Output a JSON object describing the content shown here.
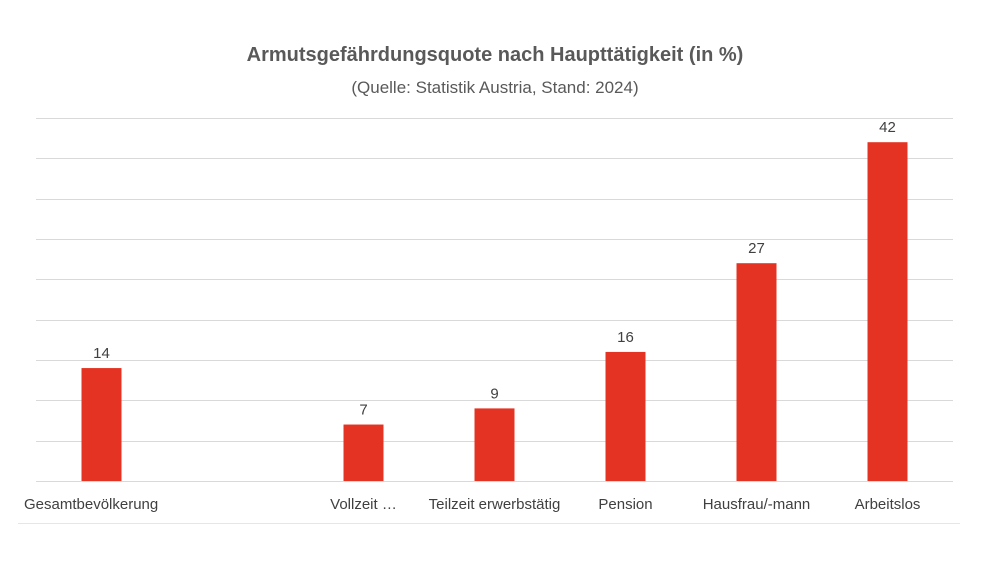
{
  "chart_data": {
    "type": "bar",
    "title": "Armutsgefährdungsquote nach Haupttätigkeit (in %)",
    "subtitle": "(Quelle: Statistik Austria, Stand: 2024)",
    "categories": [
      "Gesamtbevölkerung",
      "",
      "Vollzeit …",
      "Teilzeit erwerbstätig",
      "Pension",
      "Hausfrau/-mann",
      "Arbeitslos"
    ],
    "values": [
      14,
      null,
      7,
      9,
      16,
      27,
      42
    ],
    "data_labels": [
      "14",
      "",
      "7",
      "9",
      "16",
      "27",
      "42"
    ],
    "ylim": [
      0,
      45
    ],
    "y_gridline_step": 5,
    "y_axis_labels_shown": false,
    "grid": true,
    "legend": "none",
    "bar_color": "#e53323"
  }
}
